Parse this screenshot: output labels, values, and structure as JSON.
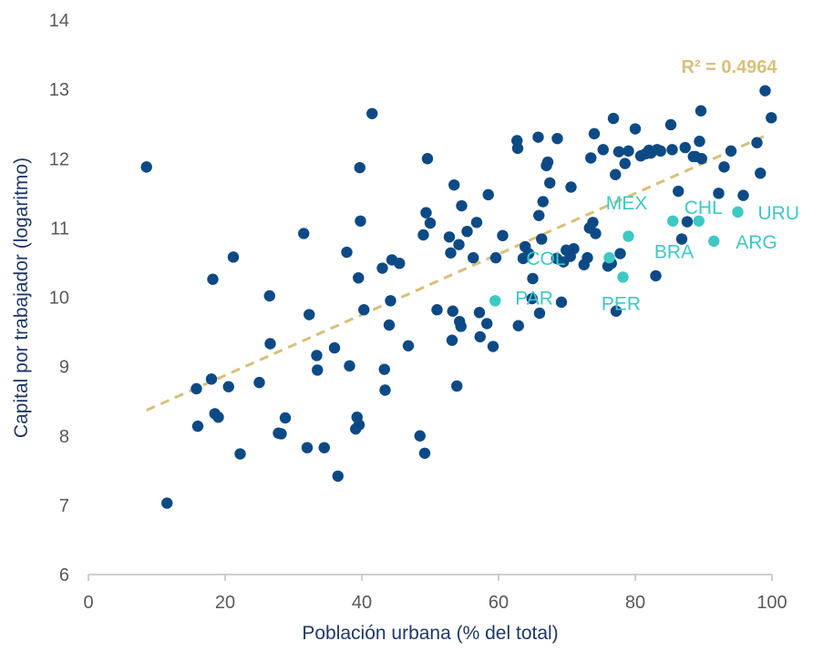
{
  "chart_data": {
    "type": "scatter",
    "title": "",
    "xlabel": "Población urbana (% del total)",
    "ylabel": "Capital por trabajador (logaritmo)",
    "xlim": [
      0,
      100
    ],
    "ylim": [
      6,
      14
    ],
    "xticks": [
      0,
      20,
      40,
      60,
      80,
      100
    ],
    "yticks": [
      6,
      7,
      8,
      9,
      10,
      11,
      12,
      13,
      14
    ],
    "grid": false,
    "colors": {
      "other": "#0d4a85",
      "highlight": "#3ec8c4",
      "trend": "#d8bf7a",
      "axis": "#595959"
    },
    "trendline": {
      "x": [
        8.5,
        99
      ],
      "y": [
        8.37,
        12.33
      ],
      "style": "dashed",
      "label": "R² = 0.4964"
    },
    "series": [
      {
        "points": [
          [
            8.5,
            11.88
          ],
          [
            11.5,
            7.03
          ],
          [
            15.8,
            8.68
          ],
          [
            16.0,
            8.14
          ],
          [
            18.0,
            8.82
          ],
          [
            18.2,
            10.26
          ],
          [
            18.5,
            8.32
          ],
          [
            19.0,
            8.27
          ],
          [
            20.5,
            8.71
          ],
          [
            21.2,
            10.58
          ],
          [
            22.2,
            7.74
          ],
          [
            25.0,
            8.77
          ],
          [
            26.5,
            10.02
          ],
          [
            26.6,
            9.33
          ],
          [
            27.8,
            8.04
          ],
          [
            28.2,
            8.03
          ],
          [
            28.8,
            8.26
          ],
          [
            31.5,
            10.92
          ],
          [
            32.0,
            7.83
          ],
          [
            32.3,
            9.75
          ],
          [
            33.4,
            9.16
          ],
          [
            33.5,
            8.95
          ],
          [
            34.5,
            7.83
          ],
          [
            36.0,
            9.27
          ],
          [
            36.5,
            7.42
          ],
          [
            37.8,
            10.65
          ],
          [
            38.2,
            9.01
          ],
          [
            39.1,
            8.1
          ],
          [
            39.3,
            8.27
          ],
          [
            39.5,
            10.28
          ],
          [
            39.6,
            8.16
          ],
          [
            39.7,
            11.87
          ],
          [
            39.8,
            11.1
          ],
          [
            40.3,
            9.82
          ],
          [
            41.5,
            12.65
          ],
          [
            43.0,
            10.42
          ],
          [
            43.3,
            8.96
          ],
          [
            43.4,
            8.66
          ],
          [
            44.0,
            9.6
          ],
          [
            44.2,
            9.95
          ],
          [
            44.4,
            10.54
          ],
          [
            45.5,
            10.49
          ],
          [
            46.8,
            9.3
          ],
          [
            48.5,
            8.0
          ],
          [
            49.0,
            10.9
          ],
          [
            49.2,
            7.75
          ],
          [
            49.4,
            11.22
          ],
          [
            49.6,
            12.0
          ],
          [
            50.0,
            11.07
          ],
          [
            51.0,
            9.82
          ],
          [
            52.8,
            10.87
          ],
          [
            53.0,
            10.64
          ],
          [
            53.2,
            9.38
          ],
          [
            53.5,
            11.62
          ],
          [
            53.3,
            9.8
          ],
          [
            53.9,
            8.72
          ],
          [
            54.2,
            10.76
          ],
          [
            54.3,
            9.65
          ],
          [
            54.5,
            9.58
          ],
          [
            54.6,
            11.32
          ],
          [
            55.4,
            10.95
          ],
          [
            56.3,
            10.57
          ],
          [
            56.8,
            11.08
          ],
          [
            57.2,
            9.78
          ],
          [
            57.3,
            9.43
          ],
          [
            58.3,
            9.62
          ],
          [
            58.5,
            11.48
          ],
          [
            59.2,
            9.29
          ],
          [
            59.6,
            10.57
          ],
          [
            60.6,
            10.89
          ],
          [
            62.7,
            12.26
          ],
          [
            62.8,
            12.15
          ],
          [
            62.9,
            9.59
          ],
          [
            63.6,
            10.56
          ],
          [
            63.9,
            10.73
          ],
          [
            64.4,
            10.63
          ],
          [
            64.9,
            9.98
          ],
          [
            65.0,
            10.27
          ],
          [
            65.8,
            12.31
          ],
          [
            65.9,
            11.18
          ],
          [
            66.0,
            9.77
          ],
          [
            66.3,
            10.84
          ],
          [
            66.5,
            11.38
          ],
          [
            67.0,
            11.9
          ],
          [
            67.2,
            11.95
          ],
          [
            67.5,
            11.65
          ],
          [
            68.5,
            10.56
          ],
          [
            68.6,
            12.29
          ],
          [
            69.2,
            9.93
          ],
          [
            69.5,
            10.51
          ],
          [
            69.9,
            10.68
          ],
          [
            70.5,
            10.59
          ],
          [
            70.6,
            11.59
          ],
          [
            71.0,
            10.7
          ],
          [
            72.5,
            10.47
          ],
          [
            73.0,
            10.57
          ],
          [
            73.3,
            11.0
          ],
          [
            73.5,
            12.01
          ],
          [
            73.8,
            11.08
          ],
          [
            74.0,
            12.36
          ],
          [
            74.2,
            10.92
          ],
          [
            75.3,
            12.13
          ],
          [
            76.0,
            10.45
          ],
          [
            76.5,
            10.49
          ],
          [
            76.8,
            12.58
          ],
          [
            77.1,
            11.77
          ],
          [
            77.2,
            9.8
          ],
          [
            77.6,
            12.1
          ],
          [
            77.8,
            10.63
          ],
          [
            78.5,
            11.93
          ],
          [
            79.0,
            12.11
          ],
          [
            80.0,
            12.43
          ],
          [
            80.8,
            12.04
          ],
          [
            81.5,
            12.07
          ],
          [
            82.0,
            12.12
          ],
          [
            82.3,
            12.08
          ],
          [
            83.0,
            10.31
          ],
          [
            83.2,
            12.13
          ],
          [
            83.7,
            12.11
          ],
          [
            85.2,
            12.49
          ],
          [
            85.4,
            12.13
          ],
          [
            86.3,
            11.53
          ],
          [
            86.8,
            10.84
          ],
          [
            87.3,
            12.16
          ],
          [
            87.6,
            11.09
          ],
          [
            88.5,
            12.03
          ],
          [
            88.8,
            12.03
          ],
          [
            89.4,
            12.25
          ],
          [
            89.6,
            12.69
          ],
          [
            89.7,
            12.0
          ],
          [
            92.2,
            11.5
          ],
          [
            93.0,
            11.88
          ],
          [
            94.0,
            12.11
          ],
          [
            95.8,
            11.47
          ],
          [
            97.8,
            12.23
          ],
          [
            98.3,
            11.79
          ],
          [
            99.0,
            12.98
          ],
          [
            99.9,
            12.59
          ]
        ]
      },
      {
        "points": [
          [
            59.5,
            9.95,
            "PAR"
          ],
          [
            76.2,
            10.57,
            "COL"
          ],
          [
            78.2,
            10.29,
            "PER"
          ],
          [
            79.0,
            10.88,
            "BRA"
          ],
          [
            85.5,
            11.1,
            "MEX"
          ],
          [
            89.3,
            11.1,
            "CHL"
          ],
          [
            91.5,
            10.81,
            "ARG"
          ],
          [
            95.0,
            11.23,
            "URU"
          ]
        ]
      }
    ]
  }
}
